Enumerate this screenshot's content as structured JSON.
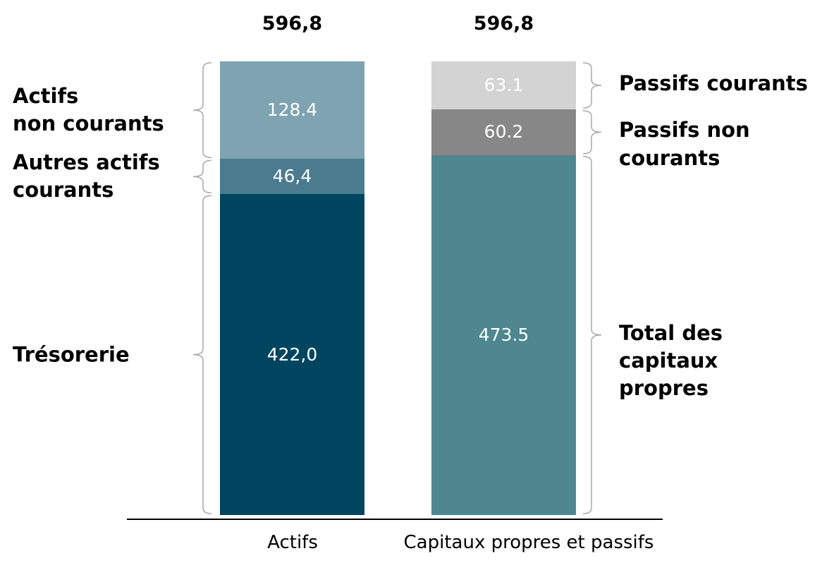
{
  "chart_data": {
    "type": "stacked_bar",
    "categories": [
      "Actifs",
      "Capitaux propres et passifs"
    ],
    "totals": [
      596.8,
      596.8
    ],
    "total_labels": [
      "596,8",
      "596,8"
    ],
    "ylim": [
      0,
      596.8
    ],
    "series": [
      {
        "name": "Trésorerie",
        "color": "#00455f",
        "values": [
          422.0,
          null
        ],
        "value_labels": [
          "422,0",
          null
        ]
      },
      {
        "name": "Autres actifs\ncourants",
        "color": "#4a7b8e",
        "values": [
          46.4,
          null
        ],
        "value_labels": [
          "46,4",
          null
        ]
      },
      {
        "name": "Actifs\nnon courants",
        "color": "#7fa3b1",
        "values": [
          128.4,
          null
        ],
        "value_labels": [
          "128.4",
          null
        ]
      },
      {
        "name": "Total des\ncapitaux\npropres",
        "color": "#4e8790",
        "values": [
          null,
          473.5
        ],
        "value_labels": [
          null,
          "473.5"
        ]
      },
      {
        "name": "Passifs non\ncourants",
        "color": "#878787",
        "values": [
          null,
          60.2
        ],
        "value_labels": [
          null,
          "60.2"
        ]
      },
      {
        "name": "Passifs courants",
        "color": "#d3d3d3",
        "values": [
          null,
          63.1
        ],
        "value_labels": [
          null,
          "63.1"
        ]
      }
    ]
  }
}
